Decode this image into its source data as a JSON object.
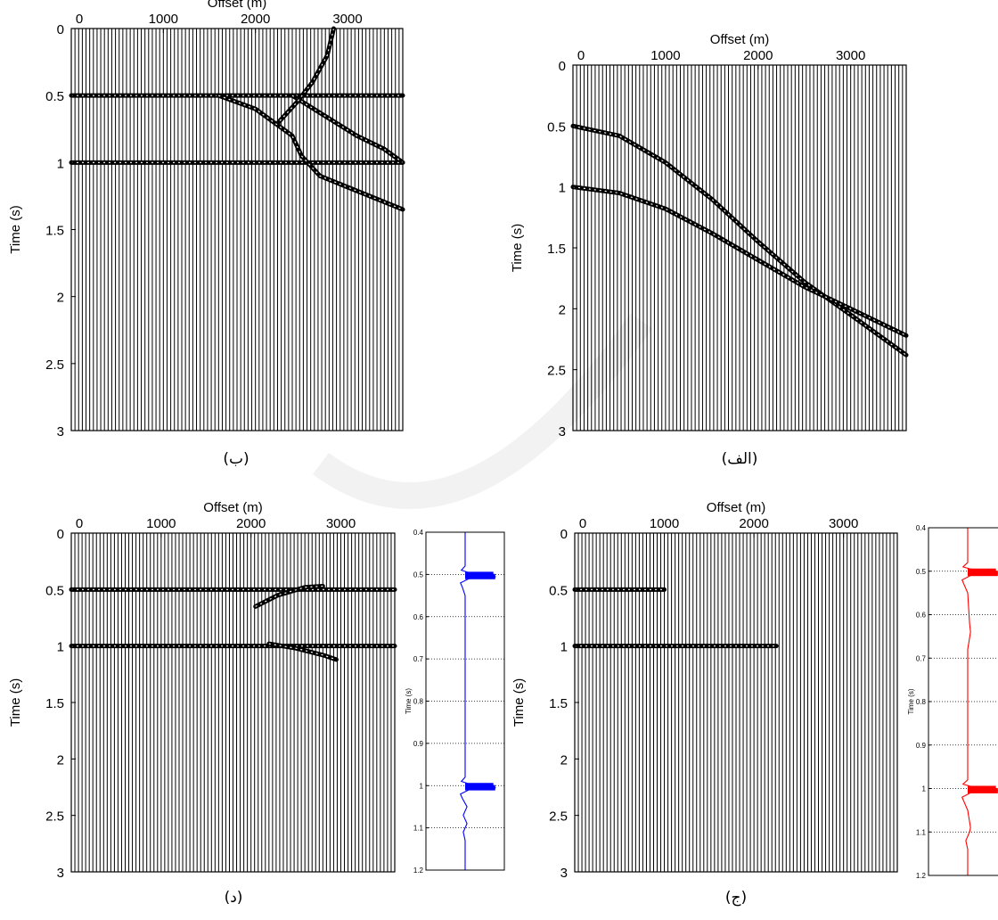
{
  "chart_data": [
    {
      "type": "seismic_section",
      "caption": "(ب)",
      "title": "Offset (m)",
      "xlabel": "Offset (m)",
      "ylabel": "Time (s)",
      "xlim": [
        0,
        3600
      ],
      "ylim": [
        0,
        3
      ],
      "x_ticks": [
        "0",
        "1000",
        "2000",
        "3000"
      ],
      "y_ticks": [
        "0",
        "0.5",
        "1",
        "1.5",
        "2",
        "2.5",
        "3"
      ],
      "events": [
        {
          "points": [
            [
              0,
              0.5
            ],
            [
              3600,
              0.5
            ]
          ]
        },
        {
          "points": [
            [
              0,
              1.0
            ],
            [
              3600,
              1.0
            ]
          ]
        },
        {
          "points": [
            [
              1600,
              0.5
            ],
            [
              2000,
              0.6
            ],
            [
              2400,
              0.8
            ],
            [
              2500,
              0.95
            ],
            [
              2700,
              1.1
            ],
            [
              3600,
              1.35
            ]
          ]
        },
        {
          "points": [
            [
              2400,
              0.5
            ],
            [
              2750,
              0.65
            ],
            [
              3100,
              0.8
            ],
            [
              3400,
              0.9
            ],
            [
              3600,
              1.0
            ]
          ]
        },
        {
          "points": [
            [
              2850,
              0.0
            ],
            [
              2780,
              0.2
            ],
            [
              2620,
              0.4
            ],
            [
              2450,
              0.55
            ],
            [
              2250,
              0.7
            ]
          ]
        }
      ]
    },
    {
      "type": "seismic_section",
      "caption": "(الف)",
      "title": "Offset (m)",
      "xlabel": "Offset (m)",
      "ylabel": "Time (s)",
      "xlim": [
        0,
        3600
      ],
      "ylim": [
        0,
        3
      ],
      "x_ticks": [
        "0",
        "1000",
        "2000",
        "3000"
      ],
      "y_ticks": [
        "0",
        "0.5",
        "1",
        "1.5",
        "2",
        "2.5",
        "3"
      ],
      "events": [
        {
          "points": [
            [
              0,
              0.5
            ],
            [
              500,
              0.58
            ],
            [
              1000,
              0.8
            ],
            [
              1500,
              1.1
            ],
            [
              2000,
              1.45
            ],
            [
              2500,
              1.78
            ],
            [
              3000,
              2.05
            ],
            [
              3600,
              2.38
            ]
          ]
        },
        {
          "points": [
            [
              0,
              1.0
            ],
            [
              500,
              1.05
            ],
            [
              1000,
              1.18
            ],
            [
              1500,
              1.38
            ],
            [
              2000,
              1.6
            ],
            [
              2500,
              1.82
            ],
            [
              3000,
              2.0
            ],
            [
              3600,
              2.22
            ]
          ]
        }
      ]
    },
    {
      "type": "seismic_section",
      "caption": "(د)",
      "title": "Offset (m)",
      "xlabel": "Offset (m)",
      "ylabel": "Time (s)",
      "xlim": [
        0,
        3600
      ],
      "ylim": [
        0,
        3
      ],
      "x_ticks": [
        "0",
        "1000",
        "2000",
        "3000"
      ],
      "y_ticks": [
        "0",
        "0.5",
        "1",
        "1.5",
        "2",
        "2.5",
        "3"
      ],
      "events": [
        {
          "points": [
            [
              0,
              0.5
            ],
            [
              3600,
              0.5
            ]
          ]
        },
        {
          "points": [
            [
              0,
              1.0
            ],
            [
              3600,
              1.0
            ]
          ]
        },
        {
          "points": [
            [
              2050,
              0.65
            ],
            [
              2300,
              0.55
            ],
            [
              2600,
              0.48
            ],
            [
              2800,
              0.47
            ]
          ]
        },
        {
          "points": [
            [
              2200,
              0.98
            ],
            [
              2500,
              1.02
            ],
            [
              2800,
              1.08
            ],
            [
              2950,
              1.12
            ]
          ]
        }
      ]
    },
    {
      "type": "seismic_section",
      "caption": "(ج)",
      "title": "Offset (m)",
      "xlabel": "Offset (m)",
      "ylabel": "Time (s)",
      "xlim": [
        0,
        3600
      ],
      "ylim": [
        0,
        3
      ],
      "x_ticks": [
        "0",
        "1000",
        "2000",
        "3000"
      ],
      "y_ticks": [
        "0",
        "0.5",
        "1",
        "1.5",
        "2",
        "2.5",
        "3"
      ],
      "events": [
        {
          "points": [
            [
              0,
              0.5
            ],
            [
              1000,
              0.5
            ]
          ]
        },
        {
          "points": [
            [
              0,
              1.0
            ],
            [
              2250,
              1.0
            ]
          ]
        }
      ]
    },
    {
      "type": "line",
      "color": "#0000ff",
      "ylabel": "Time (s)",
      "ylim": [
        0.4,
        1.2
      ],
      "y_ticks": [
        "0.4",
        "0.5",
        "0.6",
        "0.7",
        "0.8",
        "0.9",
        "1",
        "1.1",
        "1.2"
      ],
      "grid": true,
      "series": [
        {
          "points": [
            [
              0,
              0.4
            ],
            [
              0,
              0.48
            ],
            [
              -0.4,
              0.49
            ],
            [
              0.3,
              0.495
            ],
            [
              3,
              0.5
            ],
            [
              3.2,
              0.505
            ],
            [
              0.4,
              0.51
            ],
            [
              -0.5,
              0.52
            ],
            [
              -0.3,
              0.53
            ],
            [
              0,
              0.55
            ],
            [
              0,
              0.98
            ],
            [
              -0.4,
              0.99
            ],
            [
              0.3,
              0.995
            ],
            [
              3,
              1.0
            ],
            [
              3.2,
              1.005
            ],
            [
              0.4,
              1.01
            ],
            [
              -0.5,
              1.02
            ],
            [
              -0.3,
              1.03
            ],
            [
              0.2,
              1.05
            ],
            [
              -0.2,
              1.07
            ],
            [
              0.2,
              1.09
            ],
            [
              -0.2,
              1.11
            ],
            [
              0,
              1.13
            ],
            [
              0,
              1.2
            ]
          ]
        }
      ]
    },
    {
      "type": "line",
      "color": "#ff0000",
      "ylabel": "Time (s)",
      "ylim": [
        0.4,
        1.2
      ],
      "y_ticks": [
        "0.4",
        "0.5",
        "0.6",
        "0.7",
        "0.8",
        "0.9",
        "1",
        "1.1",
        "1.2"
      ],
      "grid": true,
      "series": [
        {
          "points": [
            [
              0,
              0.4
            ],
            [
              0,
              0.48
            ],
            [
              -0.5,
              0.49
            ],
            [
              0.3,
              0.495
            ],
            [
              3,
              0.5
            ],
            [
              3.2,
              0.505
            ],
            [
              0.3,
              0.51
            ],
            [
              -0.6,
              0.52
            ],
            [
              0,
              0.55
            ],
            [
              0.2,
              0.62
            ],
            [
              0.3,
              0.64
            ],
            [
              0,
              0.68
            ],
            [
              0,
              0.98
            ],
            [
              -0.5,
              0.99
            ],
            [
              0.3,
              0.995
            ],
            [
              3,
              1.0
            ],
            [
              3.2,
              1.005
            ],
            [
              0.3,
              1.01
            ],
            [
              -0.6,
              1.02
            ],
            [
              0,
              1.05
            ],
            [
              0.3,
              1.09
            ],
            [
              0.2,
              1.1
            ],
            [
              -0.2,
              1.12
            ],
            [
              0,
              1.14
            ],
            [
              0,
              1.2
            ]
          ]
        }
      ]
    }
  ]
}
